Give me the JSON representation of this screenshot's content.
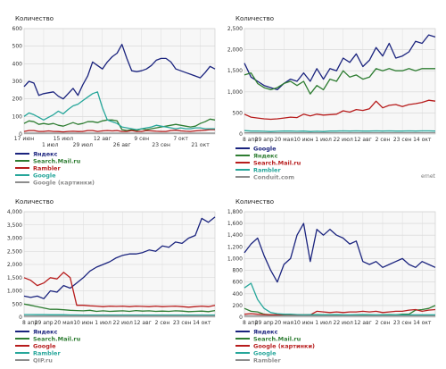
{
  "watermark": "ernet",
  "chart_data": [
    {
      "type": "line",
      "ylabel": "Количество",
      "ylim": [
        0,
        600
      ],
      "yticks": [
        0,
        100,
        200,
        300,
        400,
        500,
        600
      ],
      "xticks_top": [
        "17 июн",
        "15 июл",
        "12 авг",
        "9 сен",
        "7 окт"
      ],
      "xticks_bottom": [
        "1 июл",
        "29 июл",
        "26 авг",
        "23 сен",
        "21 окт"
      ],
      "xtick_top_pos": [
        0,
        8,
        16,
        24,
        32
      ],
      "xtick_bottom_pos": [
        4,
        12,
        20,
        28,
        36
      ],
      "x_count": 40,
      "legend": [
        {
          "name": "Яндекс",
          "color": "#1a237e"
        },
        {
          "name": "Search.Mail.ru",
          "color": "#2e7d32"
        },
        {
          "name": "Rambler",
          "color": "#b71c1c"
        },
        {
          "name": "Google",
          "color": "#26a69a"
        },
        {
          "name": "Google (картинки)",
          "color": "#8d8d8d"
        }
      ],
      "series": [
        {
          "name": "Яндекс",
          "color": "#1a237e",
          "values": [
            270,
            300,
            290,
            220,
            230,
            235,
            240,
            215,
            200,
            230,
            260,
            220,
            280,
            330,
            410,
            390,
            370,
            410,
            440,
            460,
            510,
            430,
            360,
            355,
            360,
            370,
            390,
            420,
            430,
            430,
            410,
            370,
            360,
            350,
            340,
            330,
            320,
            350,
            385,
            370
          ]
        },
        {
          "name": "Search.Mail.ru",
          "color": "#2e7d32",
          "values": [
            60,
            75,
            70,
            55,
            60,
            55,
            60,
            50,
            45,
            55,
            65,
            55,
            60,
            70,
            70,
            65,
            75,
            80,
            80,
            75,
            25,
            20,
            25,
            20,
            30,
            25,
            30,
            35,
            40,
            45,
            50,
            55,
            50,
            45,
            40,
            45,
            60,
            70,
            85,
            80
          ]
        },
        {
          "name": "Rambler",
          "color": "#b71c1c",
          "values": [
            15,
            20,
            20,
            15,
            15,
            18,
            15,
            14,
            12,
            15,
            16,
            14,
            15,
            20,
            20,
            15,
            18,
            20,
            18,
            20,
            15,
            15,
            20,
            15,
            15,
            20,
            18,
            16,
            15,
            15,
            20,
            22,
            18,
            16,
            15,
            18,
            20,
            22,
            25,
            25
          ]
        },
        {
          "name": "Google",
          "color": "#26a69a",
          "values": [
            100,
            120,
            110,
            95,
            80,
            95,
            110,
            130,
            115,
            140,
            160,
            170,
            190,
            210,
            230,
            240,
            150,
            80,
            70,
            60,
            40,
            35,
            30,
            25,
            30,
            35,
            40,
            50,
            45,
            40,
            35,
            30,
            35,
            30,
            30,
            35,
            35,
            30,
            30,
            30
          ]
        },
        {
          "name": "Google (картинки)",
          "color": "#8d8d8d",
          "values": [
            5,
            5,
            5,
            5,
            5,
            5,
            5,
            5,
            5,
            5,
            5,
            5,
            5,
            5,
            5,
            5,
            5,
            5,
            5,
            5,
            5,
            5,
            5,
            5,
            5,
            5,
            5,
            5,
            5,
            5,
            5,
            5,
            5,
            5,
            5,
            5,
            5,
            5,
            5,
            5
          ]
        }
      ]
    },
    {
      "type": "line",
      "ylabel": "Количество",
      "ylim": [
        0,
        2500
      ],
      "yticks": [
        0,
        500,
        1000,
        1500,
        2000,
        2500
      ],
      "yticklabels": [
        "0",
        "500",
        "1,000",
        "1,500",
        "2,000",
        "2,500"
      ],
      "xticks_bottom": [
        "8 апр",
        "29 апр",
        "20 мая",
        "10 июн",
        "1 июл",
        "22 июл",
        "12 авг",
        "2 сен",
        "23 сен",
        "14 окт"
      ],
      "xtick_bottom_pos": [
        0,
        3,
        6,
        9,
        12,
        15,
        18,
        21,
        24,
        27
      ],
      "x_count": 30,
      "legend": [
        {
          "name": "Google",
          "color": "#1a237e"
        },
        {
          "name": "Яндекс",
          "color": "#2e7d32"
        },
        {
          "name": "Search.Mail.ru",
          "color": "#b71c1c"
        },
        {
          "name": "Rambler",
          "color": "#26a69a"
        },
        {
          "name": "Conduit.com",
          "color": "#8d8d8d"
        }
      ],
      "series": [
        {
          "name": "Google",
          "color": "#1a237e",
          "values": [
            1680,
            1350,
            1250,
            1150,
            1100,
            1050,
            1200,
            1300,
            1250,
            1450,
            1250,
            1550,
            1300,
            1550,
            1500,
            1800,
            1700,
            1900,
            1600,
            1750,
            2050,
            1850,
            2150,
            1800,
            1850,
            1950,
            2200,
            2150,
            2350,
            2300
          ]
        },
        {
          "name": "Яндекс",
          "color": "#2e7d32",
          "values": [
            1400,
            1450,
            1200,
            1100,
            1050,
            1100,
            1200,
            1250,
            1150,
            1250,
            950,
            1150,
            1050,
            1300,
            1250,
            1500,
            1350,
            1400,
            1300,
            1350,
            1550,
            1500,
            1550,
            1500,
            1500,
            1550,
            1500,
            1550,
            1550,
            1550
          ]
        },
        {
          "name": "Search.Mail.ru",
          "color": "#b71c1c",
          "values": [
            470,
            400,
            380,
            360,
            350,
            360,
            380,
            400,
            390,
            470,
            430,
            470,
            450,
            460,
            470,
            550,
            520,
            580,
            560,
            600,
            780,
            620,
            680,
            700,
            650,
            700,
            720,
            750,
            800,
            780
          ]
        },
        {
          "name": "Rambler",
          "color": "#26a69a",
          "values": [
            80,
            70,
            70,
            65,
            60,
            65,
            70,
            70,
            65,
            70,
            60,
            65,
            60,
            70,
            70,
            75,
            70,
            75,
            70,
            70,
            75,
            70,
            75,
            70,
            70,
            75,
            70,
            75,
            75,
            70
          ]
        },
        {
          "name": "Conduit.com",
          "color": "#8d8d8d",
          "values": [
            30,
            30,
            30,
            30,
            30,
            30,
            30,
            30,
            30,
            30,
            30,
            30,
            30,
            30,
            30,
            30,
            30,
            30,
            30,
            30,
            30,
            30,
            30,
            30,
            30,
            30,
            30,
            30,
            30,
            30
          ]
        }
      ]
    },
    {
      "type": "line",
      "ylabel": "Количество",
      "ylim": [
        0,
        4000
      ],
      "yticks": [
        0,
        500,
        1000,
        1500,
        2000,
        2500,
        3000,
        3500,
        4000
      ],
      "yticklabels": [
        "0",
        "500",
        "1,000",
        "1,500",
        "2,000",
        "2,500",
        "3,000",
        "3,500",
        "4,000"
      ],
      "xticks_bottom": [
        "8 апр",
        "29 апр",
        "20 мая",
        "10 июн",
        "1 июл",
        "22 июл",
        "12 авг",
        "2 сен",
        "23 сен",
        "14 окт"
      ],
      "xtick_bottom_pos": [
        0,
        3,
        6,
        9,
        12,
        15,
        18,
        21,
        24,
        27
      ],
      "x_count": 30,
      "legend": [
        {
          "name": "Яндекс",
          "color": "#1a237e"
        },
        {
          "name": "Search.Mail.ru",
          "color": "#2e7d32"
        },
        {
          "name": "Google",
          "color": "#b71c1c"
        },
        {
          "name": "Rambler",
          "color": "#26a69a"
        },
        {
          "name": "QIP.ru",
          "color": "#8d8d8d"
        }
      ],
      "series": [
        {
          "name": "Яндекс",
          "color": "#1a237e",
          "values": [
            800,
            750,
            800,
            700,
            1000,
            950,
            1200,
            1100,
            1300,
            1500,
            1750,
            1900,
            2000,
            2100,
            2250,
            2350,
            2400,
            2400,
            2450,
            2550,
            2500,
            2700,
            2650,
            2850,
            2800,
            3000,
            3100,
            3750,
            3600,
            3800
          ]
        },
        {
          "name": "Search.Mail.ru",
          "color": "#2e7d32",
          "values": [
            500,
            450,
            400,
            350,
            300,
            300,
            280,
            260,
            250,
            240,
            260,
            220,
            240,
            220,
            230,
            240,
            220,
            250,
            230,
            240,
            220,
            230,
            220,
            240,
            230,
            210,
            220,
            230,
            210,
            250
          ]
        },
        {
          "name": "Google",
          "color": "#b71c1c",
          "values": [
            1500,
            1400,
            1200,
            1300,
            1500,
            1450,
            1700,
            1500,
            450,
            450,
            430,
            420,
            400,
            420,
            410,
            420,
            400,
            420,
            410,
            400,
            420,
            400,
            410,
            420,
            400,
            380,
            400,
            420,
            400,
            450
          ]
        },
        {
          "name": "Rambler",
          "color": "#26a69a",
          "values": [
            100,
            100,
            95,
            95,
            90,
            90,
            90,
            85,
            85,
            80,
            80,
            80,
            80,
            80,
            80,
            80,
            80,
            80,
            80,
            80,
            80,
            80,
            80,
            80,
            80,
            80,
            80,
            80,
            80,
            80
          ]
        },
        {
          "name": "QIP.ru",
          "color": "#8d8d8d",
          "values": [
            40,
            40,
            40,
            40,
            40,
            40,
            40,
            40,
            40,
            40,
            40,
            40,
            40,
            40,
            40,
            40,
            40,
            40,
            40,
            40,
            40,
            40,
            40,
            40,
            40,
            40,
            40,
            40,
            40,
            40
          ]
        }
      ]
    },
    {
      "type": "line",
      "ylabel": "Количество",
      "ylim": [
        0,
        1800
      ],
      "yticks": [
        0,
        200,
        400,
        600,
        800,
        1000,
        1200,
        1400,
        1600,
        1800
      ],
      "yticklabels": [
        "0",
        "200",
        "400",
        "600",
        "800",
        "1,000",
        "1,200",
        "1,400",
        "1,600",
        "1,800"
      ],
      "xticks_bottom": [
        "8 апр",
        "29 апр",
        "20 мая",
        "10 июн",
        "1 июл",
        "22 июл",
        "12 авг",
        "2 сен",
        "23 сен",
        "14 окт"
      ],
      "xtick_bottom_pos": [
        0,
        3,
        6,
        9,
        12,
        15,
        18,
        21,
        24,
        27
      ],
      "x_count": 30,
      "legend": [
        {
          "name": "Яндекс",
          "color": "#1a237e"
        },
        {
          "name": "Search.Mail.ru",
          "color": "#2e7d32"
        },
        {
          "name": "Google (картинки)",
          "color": "#b71c1c"
        },
        {
          "name": "Google",
          "color": "#26a69a"
        },
        {
          "name": "Rambler",
          "color": "#8d8d8d"
        }
      ],
      "series": [
        {
          "name": "Яндекс",
          "color": "#1a237e",
          "values": [
            1100,
            1250,
            1350,
            1050,
            800,
            600,
            900,
            1000,
            1400,
            1600,
            950,
            1500,
            1400,
            1500,
            1400,
            1350,
            1250,
            1300,
            950,
            900,
            950,
            850,
            900,
            950,
            1000,
            900,
            850,
            950,
            900,
            850
          ]
        },
        {
          "name": "Search.Mail.ru",
          "color": "#2e7d32",
          "values": [
            150,
            100,
            90,
            50,
            40,
            40,
            40,
            45,
            40,
            40,
            40,
            45,
            40,
            40,
            40,
            35,
            35,
            40,
            40,
            40,
            35,
            40,
            45,
            40,
            50,
            50,
            120,
            130,
            150,
            200
          ]
        },
        {
          "name": "Google (картинки)",
          "color": "#b71c1c",
          "values": [
            50,
            60,
            50,
            45,
            40,
            40,
            45,
            45,
            40,
            40,
            40,
            100,
            90,
            80,
            90,
            80,
            90,
            90,
            100,
            90,
            100,
            80,
            90,
            100,
            100,
            120,
            130,
            100,
            120,
            130
          ]
        },
        {
          "name": "Google",
          "color": "#26a69a",
          "values": [
            500,
            580,
            300,
            150,
            80,
            60,
            50,
            50,
            45,
            40,
            45,
            40,
            40,
            40,
            45,
            40,
            40,
            40,
            45,
            40,
            40,
            40,
            40,
            40,
            40,
            40,
            40,
            40,
            40,
            40
          ]
        },
        {
          "name": "Rambler",
          "color": "#8d8d8d",
          "values": [
            20,
            20,
            20,
            20,
            20,
            20,
            20,
            20,
            20,
            20,
            20,
            20,
            20,
            20,
            20,
            20,
            20,
            20,
            20,
            20,
            20,
            20,
            20,
            20,
            20,
            20,
            20,
            20,
            20,
            20
          ]
        }
      ]
    }
  ]
}
